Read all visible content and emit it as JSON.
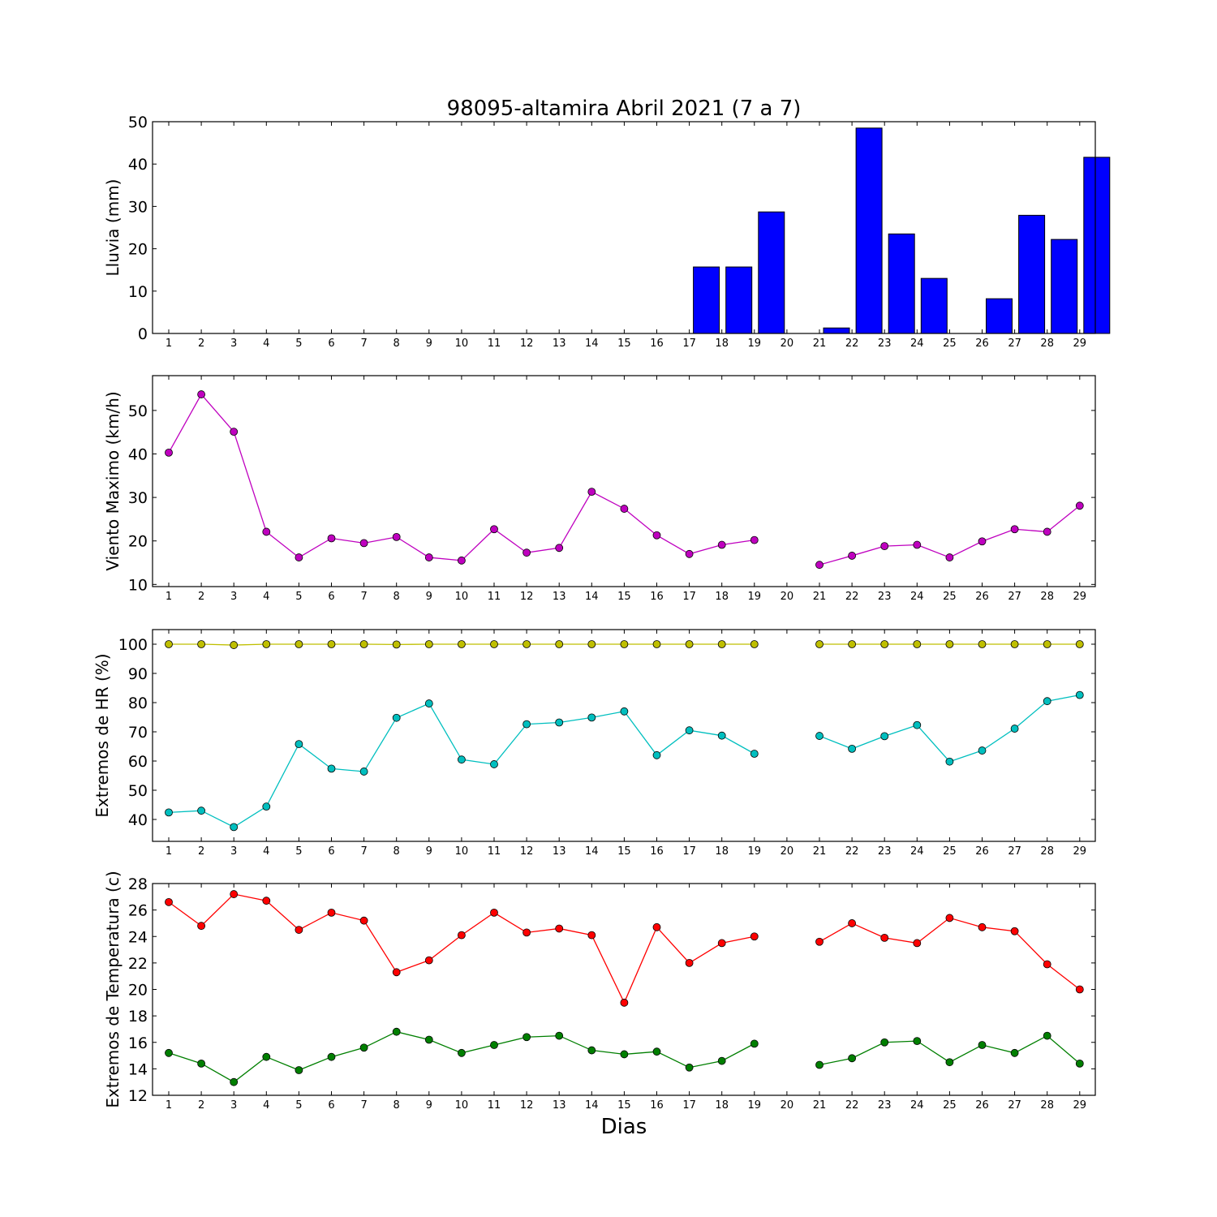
{
  "chart_data": [
    {
      "type": "bar",
      "title": "98095-altamira Abril 2021  (7 a 7)",
      "ylabel": "Lluvia (mm)",
      "xlabel": "",
      "ylim": [
        0,
        50
      ],
      "yticks": [
        0,
        10,
        20,
        30,
        40,
        50
      ],
      "categories": [
        1,
        2,
        3,
        4,
        5,
        6,
        7,
        8,
        9,
        10,
        11,
        12,
        13,
        14,
        15,
        16,
        17,
        18,
        19,
        20,
        21,
        22,
        23,
        24,
        25,
        26,
        27,
        28,
        29
      ],
      "series": [
        {
          "color": "#0000ff",
          "values": [
            0,
            0,
            0,
            0,
            0,
            0,
            0,
            0,
            0,
            0,
            0,
            0,
            0,
            0,
            0,
            0,
            15.7,
            15.7,
            28.7,
            null,
            1.3,
            48.5,
            23.5,
            13.0,
            0,
            8.2,
            27.9,
            22.2,
            41.6
          ]
        }
      ],
      "grid": false
    },
    {
      "type": "line",
      "ylabel": "Viento Maximo (km/h)",
      "xlabel": "",
      "ylim": [
        9.5,
        58
      ],
      "yticks": [
        10,
        20,
        30,
        40,
        50
      ],
      "categories": [
        1,
        2,
        3,
        4,
        5,
        6,
        7,
        8,
        9,
        10,
        11,
        12,
        13,
        14,
        15,
        16,
        17,
        18,
        19,
        20,
        21,
        22,
        23,
        24,
        25,
        26,
        27,
        28,
        29
      ],
      "series": [
        {
          "color": "#bf00bf",
          "values": [
            40.3,
            53.7,
            45.1,
            22.1,
            16.2,
            20.6,
            19.5,
            20.9,
            16.2,
            15.5,
            22.7,
            17.3,
            18.4,
            31.3,
            27.4,
            21.3,
            17.0,
            19.1,
            20.2,
            null,
            14.5,
            16.6,
            18.8,
            19.1,
            16.2,
            19.9,
            22.7,
            22.1,
            28.1
          ]
        }
      ],
      "grid": false
    },
    {
      "type": "line",
      "ylabel": "Extremos de HR (%)",
      "xlabel": "",
      "ylim": [
        32.5,
        105
      ],
      "yticks": [
        40,
        50,
        60,
        70,
        80,
        90,
        100
      ],
      "categories": [
        1,
        2,
        3,
        4,
        5,
        6,
        7,
        8,
        9,
        10,
        11,
        12,
        13,
        14,
        15,
        16,
        17,
        18,
        19,
        20,
        21,
        22,
        23,
        24,
        25,
        26,
        27,
        28,
        29
      ],
      "series": [
        {
          "color": "#bfbf00",
          "values": [
            100,
            100,
            99.7,
            100,
            100,
            100,
            100,
            99.9,
            100,
            100,
            100,
            100,
            100,
            100,
            100,
            100,
            100,
            100,
            100,
            null,
            100,
            100,
            100,
            100,
            100,
            100,
            100,
            100,
            100
          ]
        },
        {
          "color": "#00bfbf",
          "values": [
            42.4,
            43.0,
            37.4,
            44.4,
            65.8,
            57.4,
            56.4,
            74.8,
            79.7,
            60.5,
            58.9,
            72.6,
            73.2,
            74.9,
            77.0,
            62.0,
            70.5,
            68.7,
            62.5,
            null,
            68.6,
            64.2,
            68.5,
            72.3,
            59.8,
            63.6,
            71.1,
            80.5,
            82.6
          ]
        }
      ],
      "grid": false
    },
    {
      "type": "line",
      "ylabel": "Extremos de Temperatura (c)",
      "xlabel": "Dias",
      "ylim": [
        12,
        28
      ],
      "yticks": [
        12,
        14,
        16,
        18,
        20,
        22,
        24,
        26,
        28
      ],
      "categories": [
        1,
        2,
        3,
        4,
        5,
        6,
        7,
        8,
        9,
        10,
        11,
        12,
        13,
        14,
        15,
        16,
        17,
        18,
        19,
        20,
        21,
        22,
        23,
        24,
        25,
        26,
        27,
        28,
        29
      ],
      "series": [
        {
          "color": "#ff0000",
          "values": [
            26.6,
            24.8,
            27.2,
            26.7,
            24.5,
            25.8,
            25.2,
            21.3,
            22.2,
            24.1,
            25.8,
            24.3,
            24.6,
            24.1,
            19.0,
            24.7,
            22.0,
            23.5,
            24.0,
            null,
            23.6,
            25.0,
            23.9,
            23.5,
            25.4,
            24.7,
            24.4,
            21.9,
            20.0
          ]
        },
        {
          "color": "#007f00",
          "values": [
            15.2,
            14.4,
            13.0,
            14.9,
            13.9,
            14.9,
            15.6,
            16.8,
            16.2,
            15.2,
            15.8,
            16.4,
            16.5,
            15.4,
            15.1,
            15.3,
            14.1,
            14.6,
            15.9,
            null,
            14.3,
            14.8,
            16.0,
            16.1,
            14.5,
            15.8,
            15.2,
            16.5,
            14.4
          ]
        }
      ],
      "grid": false
    }
  ]
}
